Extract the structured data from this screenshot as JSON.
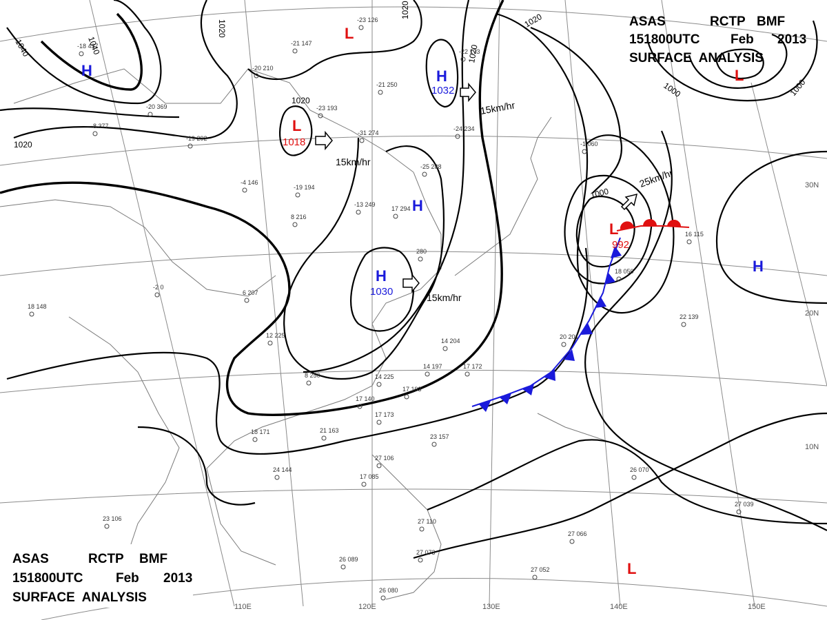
{
  "header": {
    "line1_parts": [
      "ASAS",
      "RCTP",
      "BMF"
    ],
    "line2_parts": [
      "151800UTC",
      "Feb",
      "2013"
    ],
    "line3": "SURFACE  ANALYSIS"
  },
  "grid_labels": {
    "lon": [
      "110E",
      "120E",
      "130E",
      "140E",
      "150E"
    ],
    "lat": [
      "30N",
      "20N",
      "10N"
    ]
  },
  "isobar_labels": [
    "1040",
    "1040",
    "1020",
    "1020",
    "1020",
    "1020",
    "1020",
    "1020",
    "1000",
    "1000",
    "1000"
  ],
  "pressure_systems": [
    {
      "type": "H",
      "value": ""
    },
    {
      "type": "H",
      "value": "1032"
    },
    {
      "type": "H",
      "value": ""
    },
    {
      "type": "H",
      "value": "1030"
    },
    {
      "type": "H",
      "value": ""
    },
    {
      "type": "L",
      "value": ""
    },
    {
      "type": "L",
      "value": "1018"
    },
    {
      "type": "L",
      "value": ""
    },
    {
      "type": "L",
      "value": "992"
    },
    {
      "type": "L",
      "value": ""
    }
  ],
  "motion_labels": [
    "15km/hr",
    "15km/hr",
    "15km/hr",
    "25km/hr"
  ],
  "stations": [
    "-18 437",
    "-20 210",
    "-20 369",
    "-8 377",
    "-19 292",
    "-4 146",
    "-19 194",
    "-13 249",
    "-25 288",
    "-21 250",
    "-31 274",
    "-23 193",
    "-23 126",
    "-21 147",
    "-22 173",
    "-24 234",
    "-1 060",
    "17 294",
    "8 216",
    "6 207",
    "-2 0",
    "18 148",
    "12 225",
    "8 250",
    "14 204",
    "14 225",
    "14 197",
    "17 172",
    "17 193",
    "17 140",
    "17 173",
    "21 163",
    "18 171",
    "24 144",
    "23 157",
    "23 106",
    "17 085",
    "27 106",
    "27 073",
    "27 110",
    "26 089",
    "26 080",
    "27 052",
    "27 066",
    "26 070",
    "27 039",
    "22 139",
    "16 115",
    "18 050",
    "20 201",
    "280"
  ],
  "colors": {
    "high": "#1a1adb",
    "low": "#e01010",
    "cold_front": "#1a1adb",
    "warm_front": "#e01010",
    "isobar": "#000000"
  }
}
